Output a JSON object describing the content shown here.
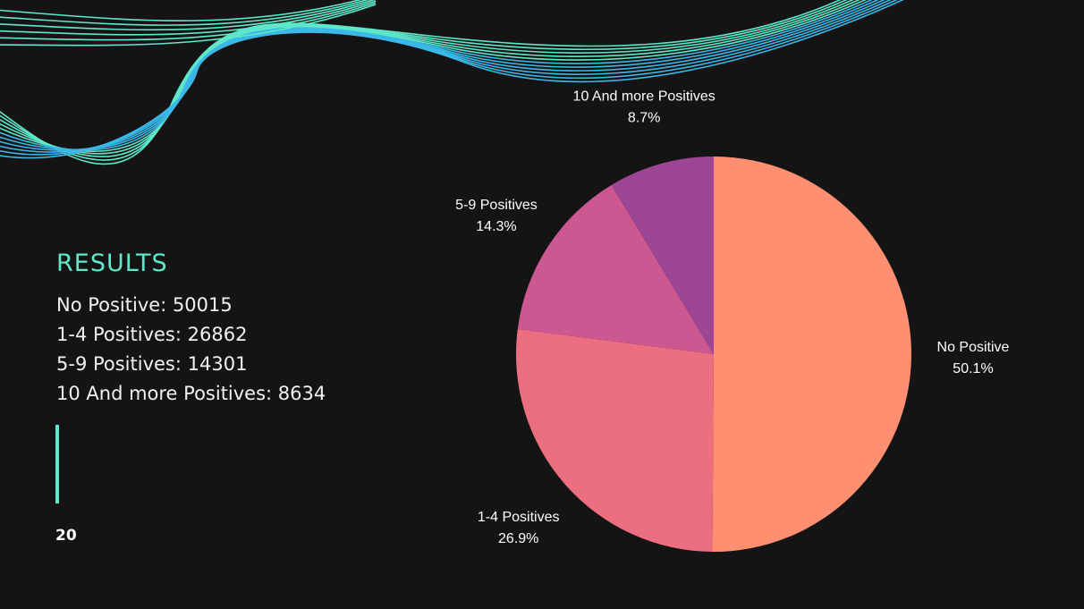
{
  "slide": {
    "heading": "RESULTS",
    "results": [
      "No Positive: 50015",
      "1-4 Positives: 26862",
      "5-9 Positives: 14301",
      "10 And more Positives: 8634"
    ],
    "page_number": "20"
  },
  "chart_data": {
    "type": "pie",
    "title": "",
    "start": "top, clockwise",
    "slices": [
      {
        "label": "No Positive",
        "value": 50015,
        "pct_label": "50.1%",
        "color": "#ff8f70"
      },
      {
        "label": "1-4 Positives",
        "value": 26862,
        "pct_label": "26.9%",
        "color": "#ec6e81"
      },
      {
        "label": "5-9 Positives",
        "value": 14301,
        "pct_label": "14.3%",
        "color": "#cb5890"
      },
      {
        "label": "10 And more Positives",
        "value": 8634,
        "pct_label": "8.7%",
        "color": "#9c4694"
      }
    ]
  },
  "decor": {
    "wave_colors": [
      "#5ee8c9",
      "#3bb8e8"
    ]
  }
}
